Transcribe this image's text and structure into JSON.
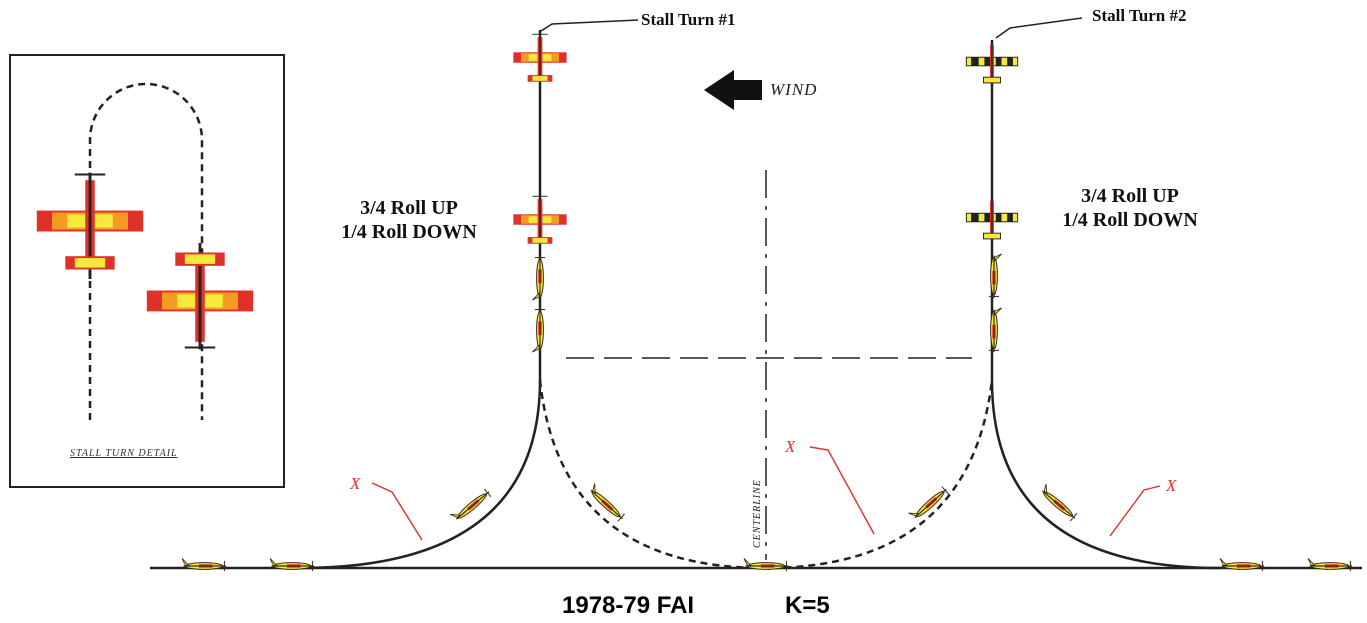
{
  "labels": {
    "stall_turn_1": "Stall Turn #1",
    "stall_turn_2": "Stall Turn #2",
    "wind": "WIND",
    "roll_left_line1": "3/4 Roll UP",
    "roll_left_line2": "1/4 Roll DOWN",
    "roll_right_line1": "3/4 Roll UP",
    "roll_right_line2": "1/4 Roll DOWN",
    "stall_turn_detail": "STALL TURN DETAIL",
    "centerline": "CENTERLINE",
    "x_marker": "X",
    "caption_event": "1978-79 FAI",
    "caption_k": "K=5"
  },
  "colors": {
    "line": "#222222",
    "accent_red": "#e0302a",
    "wing_red": "#e0302a",
    "wing_orange": "#f59a22",
    "wing_yellow": "#f5ea3a",
    "fuselage_dark": "#3a2a1a"
  },
  "icons": {
    "wind_arrow": "wind-arrow-left-icon",
    "airplane": "airplane-icon"
  }
}
